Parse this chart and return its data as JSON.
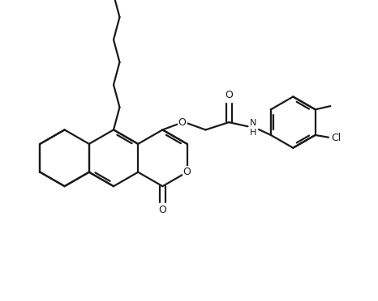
{
  "bg_color": "#ffffff",
  "line_color": "#1a1a1a",
  "line_width": 1.6,
  "figsize": [
    4.66,
    3.72
  ],
  "dpi": 100,
  "xlim": [
    0,
    10
  ],
  "ylim": [
    0,
    8
  ]
}
